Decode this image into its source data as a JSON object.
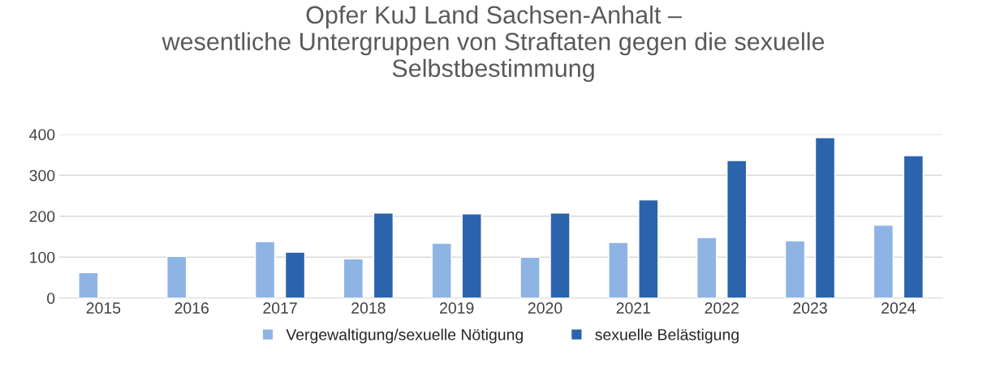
{
  "chart_data": {
    "type": "bar",
    "title": "Opfer KuJ Land Sachsen-Anhalt –\nwesentliche Untergruppen von Straftaten gegen die sexuelle\nSelbstbestimmung",
    "categories": [
      "2015",
      "2016",
      "2017",
      "2018",
      "2019",
      "2020",
      "2021",
      "2022",
      "2023",
      "2024"
    ],
    "series": [
      {
        "name": "Vergewaltigung/sexuelle Nötigung",
        "color": "#8eb4e3",
        "values": [
          62,
          102,
          138,
          96,
          134,
          100,
          136,
          148,
          140,
          178
        ]
      },
      {
        "name": "sexuelle Belästigung",
        "color": "#2b64ad",
        "values": [
          null,
          null,
          112,
          208,
          206,
          208,
          240,
          336,
          392,
          348
        ]
      }
    ],
    "ylim": [
      0,
      400
    ],
    "yticks": [
      0,
      100,
      200,
      300,
      400
    ],
    "grid": "y",
    "legend": "bottom"
  }
}
